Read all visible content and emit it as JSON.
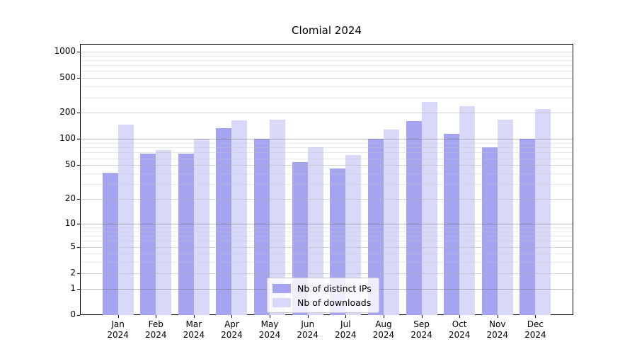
{
  "title": "Clomial 2024",
  "colors": {
    "background": "#ffffff",
    "axis": "#000000",
    "bar_distinct_ips": "#a4a4f0",
    "bar_downloads": "#d8d8f8",
    "grid_decade": "rgba(110,110,110,0.50)",
    "grid_labeled": "rgba(175,175,175,0.55)",
    "grid_minor": "rgba(200,200,200,0.40)"
  },
  "legend": {
    "position": "bottom-center",
    "items": [
      {
        "label": "Nb of distinct IPs",
        "color": "#a4a4f0"
      },
      {
        "label": "Nb of downloads",
        "color": "#d8d8f8"
      }
    ]
  },
  "chart_data": {
    "type": "bar",
    "title": "Clomial 2024",
    "xlabel": "",
    "ylabel": "",
    "yscale": "log10(value+1)",
    "ylim": [
      0,
      1230
    ],
    "grid": true,
    "legend_position": "bottom-center",
    "categories": [
      "Jan 2024",
      "Feb 2024",
      "Mar 2024",
      "Apr 2024",
      "May 2024",
      "Jun 2024",
      "Jul 2024",
      "Aug 2024",
      "Sep 2024",
      "Oct 2024",
      "Nov 2024",
      "Dec 2024"
    ],
    "series": [
      {
        "name": "Nb of distinct IPs",
        "color": "#a4a4f0",
        "values": [
          41,
          68,
          68,
          134,
          100,
          54,
          46,
          100,
          162,
          116,
          80,
          100
        ]
      },
      {
        "name": "Nb of downloads",
        "color": "#d8d8f8",
        "values": [
          148,
          75,
          100,
          164,
          168,
          81,
          66,
          129,
          267,
          237,
          168,
          221
        ]
      }
    ],
    "yticks": [
      0,
      1,
      2,
      5,
      10,
      20,
      50,
      100,
      200,
      500,
      1000
    ],
    "decade_ticks": [
      1,
      10,
      100
    ],
    "minor_gridlines": [
      3,
      4,
      6,
      7,
      8,
      9,
      30,
      40,
      60,
      70,
      80,
      90,
      300,
      400,
      600,
      700,
      800,
      900
    ]
  }
}
